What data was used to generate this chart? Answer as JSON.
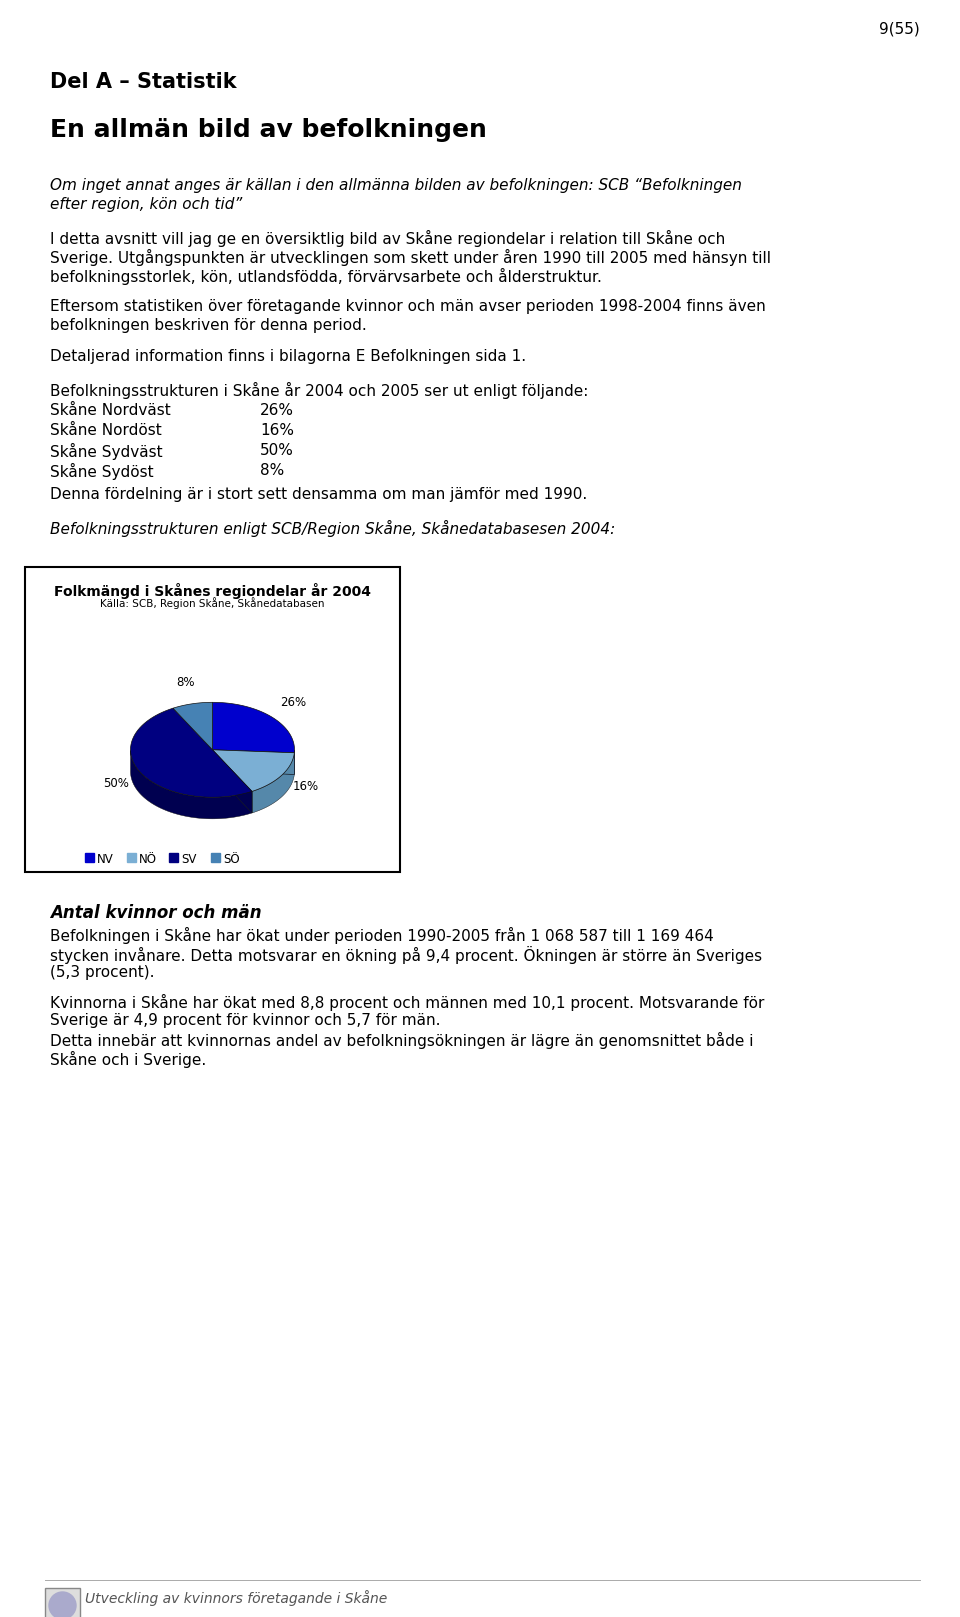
{
  "page_number": "9(55)",
  "section_title": "Del A – Statistik",
  "subsection_title": "En allmän bild av befolkningen",
  "subtitle_line1": "Om inget annat anges är källan i den allmänna bilden av befolkningen: SCB “Befolkningen",
  "subtitle_line2": "efter region, kön och tid”",
  "para1_lines": [
    "I detta avsnitt vill jag ge en översiktlig bild av Skåne regiondelar i relation till Skåne och",
    "Sverige. Utgångspunkten är utvecklingen som skett under åren 1990 till 2005 med hänsyn till",
    "befolkningsstorlek, kön, utlandsfödda, förvärvsarbete och ålderstruktur."
  ],
  "para2_lines": [
    "Eftersom statistiken över företagande kvinnor och män avser perioden 1998-2004 finns även",
    "befolkningen beskriven för denna period."
  ],
  "para3": "Detaljerad information finns i bilagorna E Befolkningen sida 1.",
  "struct_title": "Befolkningsstrukturen i Skåne år 2004 och 2005 ser ut enligt följande:",
  "struct_items": [
    [
      "Skåne Nordväst",
      "26%"
    ],
    [
      "Skåne Nordöst",
      "16%"
    ],
    [
      "Skåne Sydväst",
      "50%"
    ],
    [
      "Skåne Sydöst",
      "8%"
    ]
  ],
  "struct_end": "Denna fördelning är i stort sett densamma om man jämför med 1990.",
  "italic_caption": "Befolkningsstrukturen enligt SCB/Region Skåne, Skånedatabasesen 2004:",
  "pie_chart_title": "Folkmängd i Skånes regiondelar år 2004",
  "pie_chart_subtitle": "Källa: SCB, Region Skåne, Skånedatabasen",
  "pie_values": [
    26,
    16,
    50,
    8
  ],
  "pie_legend_labels": [
    "NV",
    "NÖ",
    "SV",
    "SÖ"
  ],
  "pie_colors_top": [
    "#0000CD",
    "#7BAFD4",
    "#000080",
    "#4682B4"
  ],
  "pie_colors_side": [
    "#00006B",
    "#5588AA",
    "#000050",
    "#2255AA"
  ],
  "pie_pct_labels": [
    "26%",
    "16%",
    "50%",
    "8%"
  ],
  "section2_title": "Antal kvinnor och män",
  "s2p1_lines": [
    "Befolkningen i Skåne har ökat under perioden 1990-2005 från 1 068 587 till 1 169 464",
    "stycken invånare. Detta motsvarar en ökning på 9,4 procent. Ökningen är större än Sveriges",
    "(5,3 procent)."
  ],
  "s2p2_lines": [
    "Kvinnorna i Skåne har ökat med 8,8 procent och männen med 10,1 procent. Motsvarande för",
    "Sverige är 4,9 procent för kvinnor och 5,7 för män.",
    "Detta innebär att kvinnornas andel av befolkningsökningen är lägre än genomsnittet både i",
    "Skåne och i Sverige."
  ],
  "footer_text": "Utveckling av kvinnors företagande i Skåne"
}
